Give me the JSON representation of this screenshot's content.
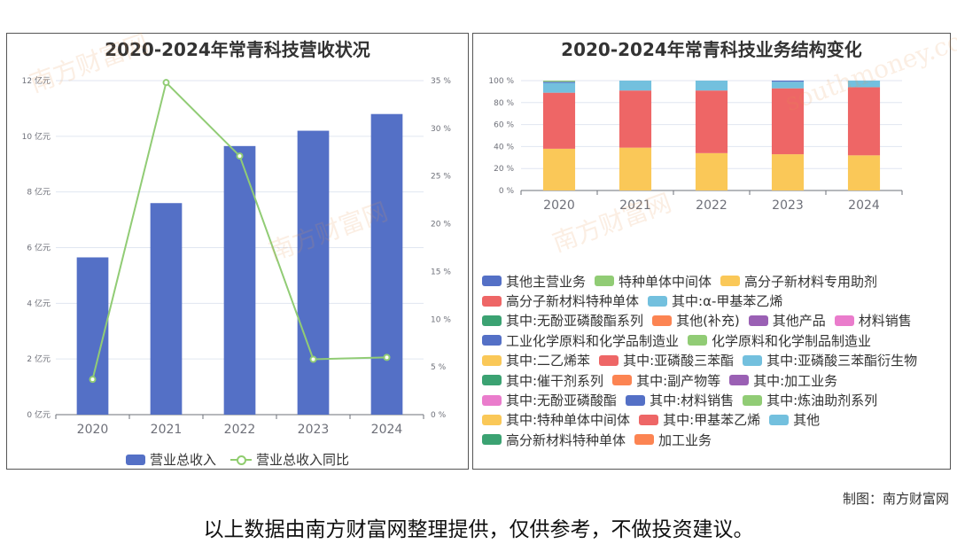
{
  "chart_data": [
    {
      "type": "bar+line",
      "title": "2020-2024年常青科技营收状况",
      "categories": [
        "2020",
        "2021",
        "2022",
        "2023",
        "2024"
      ],
      "series": [
        {
          "name": "营业总收入",
          "type": "bar",
          "axis": "left",
          "values": [
            5.65,
            7.6,
            9.65,
            10.2,
            10.8
          ],
          "color": "#5470c6"
        },
        {
          "name": "营业总收入同比",
          "type": "line",
          "axis": "right",
          "values": [
            3.7,
            34.8,
            27.1,
            5.8,
            6.0
          ],
          "color": "#91cc75"
        }
      ],
      "ylim_left": [
        0,
        12
      ],
      "yticks_left": [
        "0 亿元",
        "2 亿元",
        "4 亿元",
        "6 亿元",
        "8 亿元",
        "10 亿元",
        "12 亿元"
      ],
      "ylim_right": [
        0,
        35
      ],
      "yticks_right": [
        "0 %",
        "5 %",
        "10 %",
        "15 %",
        "20 %",
        "25 %",
        "30 %",
        "35 %"
      ],
      "grid": true,
      "legend_position": "bottom"
    },
    {
      "type": "stacked-bar",
      "title": "2020-2024年常青科技业务结构变化",
      "categories": [
        "2020",
        "2021",
        "2022",
        "2023",
        "2024"
      ],
      "series": [
        {
          "name": "高分子新材料专用助剂",
          "color": "#fac858",
          "values": [
            38,
            39,
            34,
            33,
            32
          ]
        },
        {
          "name": "高分子新材料特种单体",
          "color": "#ee6666",
          "values": [
            51,
            52,
            57,
            60,
            62
          ]
        },
        {
          "name": "其中:α-甲基苯乙烯",
          "color": "#73c0de",
          "values": [
            9,
            9,
            9,
            6,
            6
          ]
        },
        {
          "name": "其他主营业务",
          "color": "#5470c6",
          "values": [
            1,
            0,
            0,
            1,
            0
          ]
        },
        {
          "name": "特种单体中间体",
          "color": "#91cc75",
          "values": [
            1,
            0,
            0,
            0,
            0
          ]
        }
      ],
      "ylim": [
        0,
        100
      ],
      "yticks": [
        "0 %",
        "20 %",
        "40 %",
        "60 %",
        "80 %",
        "100 %"
      ],
      "legend": [
        [
          {
            "name": "其他主营业务",
            "color": "#5470c6"
          },
          {
            "name": "特种单体中间体",
            "color": "#91cc75"
          },
          {
            "name": "高分子新材料专用助剂",
            "color": "#fac858"
          }
        ],
        [
          {
            "name": "高分子新材料特种单体",
            "color": "#ee6666"
          },
          {
            "name": "其中:α-甲基苯乙烯",
            "color": "#73c0de"
          }
        ],
        [
          {
            "name": "其中:无酚亚磷酸酯系列",
            "color": "#3ba272"
          },
          {
            "name": "其他(补充)",
            "color": "#fc8452"
          },
          {
            "name": "其他产品",
            "color": "#9a60b4"
          },
          {
            "name": "材料销售",
            "color": "#ea7ccc"
          }
        ],
        [
          {
            "name": "工业化学原料和化学品制造业",
            "color": "#5470c6"
          },
          {
            "name": "化学原料和化学制品制造业",
            "color": "#91cc75"
          }
        ],
        [
          {
            "name": "其中:二乙烯苯",
            "color": "#fac858"
          },
          {
            "name": "其中:亚磷酸三苯酯",
            "color": "#ee6666"
          },
          {
            "name": "其中:亚磷酸三苯酯衍生物",
            "color": "#73c0de"
          }
        ],
        [
          {
            "name": "其中:催干剂系列",
            "color": "#3ba272"
          },
          {
            "name": "其中:副产物等",
            "color": "#fc8452"
          },
          {
            "name": "其中:加工业务",
            "color": "#9a60b4"
          }
        ],
        [
          {
            "name": "其中:无酚亚磷酸酯",
            "color": "#ea7ccc"
          },
          {
            "name": "其中:材料销售",
            "color": "#5470c6"
          },
          {
            "name": "其中:炼油助剂系列",
            "color": "#91cc75"
          }
        ],
        [
          {
            "name": "其中:特种单体中间体",
            "color": "#fac858"
          },
          {
            "name": "其中:甲基苯乙烯",
            "color": "#ee6666"
          },
          {
            "name": "其他",
            "color": "#73c0de"
          }
        ],
        [
          {
            "name": "高分新材料特种单体",
            "color": "#3ba272"
          },
          {
            "name": "加工业务",
            "color": "#fc8452"
          }
        ]
      ]
    }
  ],
  "watermark": {
    "cn": "南方财富网",
    "en": "southmoney.com"
  },
  "credit": "制图：南方财富网",
  "disclaimer": "以上数据由南方财富网整理提供，仅供参考，不做投资建议。"
}
